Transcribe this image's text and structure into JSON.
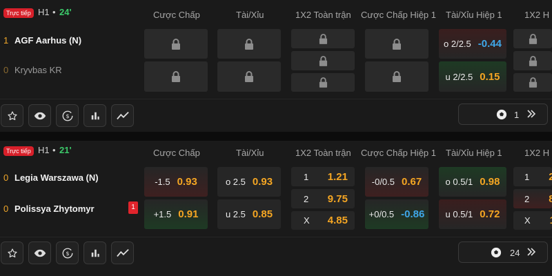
{
  "columns": [
    "Cược Chấp",
    "Tài/Xỉu",
    "1X2 Toàn trận",
    "Cược Chấp Hiệp 1",
    "Tài/Xỉu Hiệp 1",
    "1X2 H"
  ],
  "match1": {
    "live_label": "Trực tiếp",
    "half": "H1",
    "dot": "•",
    "minute": "24'",
    "home": {
      "score": "1",
      "name": "AGF Aarhus (N)"
    },
    "away": {
      "score": "0",
      "name": "Kryvbas KR"
    },
    "ou_h1": {
      "over": {
        "label": "o 2/2.5",
        "odd": "-0.44"
      },
      "under": {
        "label": "u 2/2.5",
        "odd": "0.15"
      }
    },
    "market_count": "1"
  },
  "match2": {
    "live_label": "Trực tiếp",
    "half": "H1",
    "dot": "•",
    "minute": "21'",
    "home": {
      "score": "0",
      "name": "Legia Warszawa (N)"
    },
    "away": {
      "score": "0",
      "name": "Polissya Zhytomyr",
      "red_cards": "1"
    },
    "handicap": {
      "home": {
        "label": "-1.5",
        "odd": "0.93"
      },
      "away": {
        "label": "+1.5",
        "odd": "0.91"
      }
    },
    "ou": {
      "over": {
        "label": "o 2.5",
        "odd": "0.93"
      },
      "under": {
        "label": "u 2.5",
        "odd": "0.85"
      }
    },
    "x12": {
      "one": {
        "label": "1",
        "odd": "1.21"
      },
      "two": {
        "label": "2",
        "odd": "9.75"
      },
      "draw": {
        "label": "X",
        "odd": "4.85"
      }
    },
    "handicap_h1": {
      "home": {
        "label": "-0/0.5",
        "odd": "0.67"
      },
      "away": {
        "label": "+0/0.5",
        "odd": "-0.86"
      }
    },
    "ou_h1": {
      "over": {
        "label": "o 0.5/1",
        "odd": "0.98"
      },
      "under": {
        "label": "u 0.5/1",
        "odd": "0.72"
      }
    },
    "x12_h1": {
      "one": "1",
      "two": "2",
      "draw": "X"
    },
    "market_count": "24"
  },
  "colors": {
    "accent_odd": "#f5a623",
    "negative_odd": "#3fa7e8",
    "live": "#d8202a",
    "minute": "#3cc96a"
  }
}
